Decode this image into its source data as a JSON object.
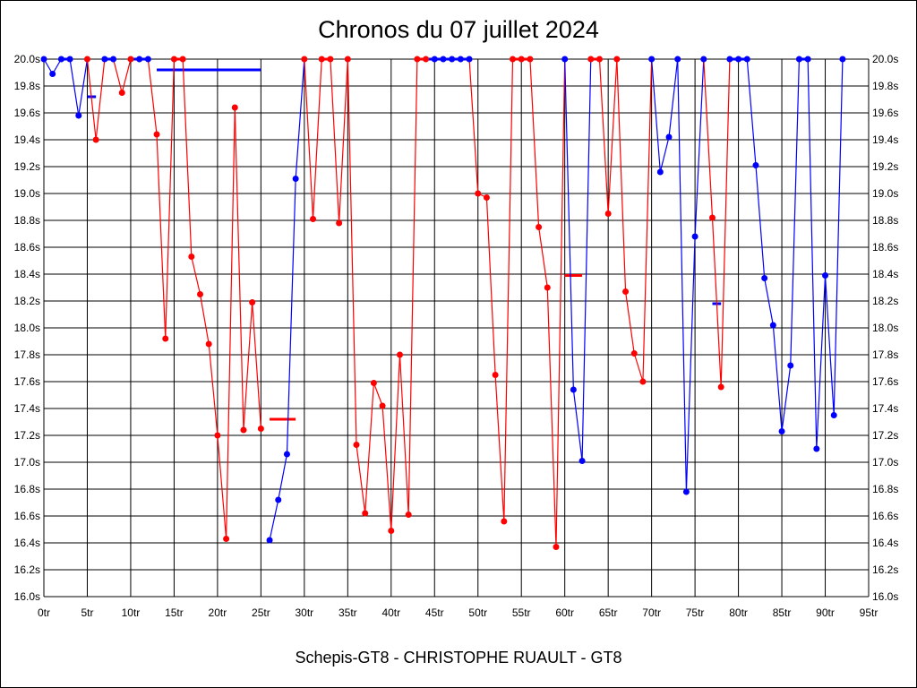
{
  "chart_data": {
    "type": "line",
    "title": "Chronos du 07 juillet 2024",
    "xlabel": "Schepis-GT8 - CHRISTOPHE RUAULT - GT8",
    "ylabel": "",
    "xlim": [
      0,
      95
    ],
    "ylim": [
      16.0,
      20.0
    ],
    "grid": true,
    "x_ticks": [
      "0tr",
      "5tr",
      "10tr",
      "15tr",
      "20tr",
      "25tr",
      "30tr",
      "35tr",
      "40tr",
      "45tr",
      "50tr",
      "55tr",
      "60tr",
      "65tr",
      "70tr",
      "75tr",
      "80tr",
      "85tr",
      "90tr",
      "95tr"
    ],
    "y_ticks": [
      "16.0s",
      "16.2s",
      "16.4s",
      "16.6s",
      "16.8s",
      "17.0s",
      "17.2s",
      "17.4s",
      "17.6s",
      "17.8s",
      "18.0s",
      "18.2s",
      "18.4s",
      "18.6s",
      "18.8s",
      "19.0s",
      "19.2s",
      "19.4s",
      "19.6s",
      "19.8s",
      "20.0s"
    ],
    "colors": {
      "blue": "#0000ff",
      "red": "#ff0000"
    },
    "points": [
      [
        0,
        20.0,
        "blue"
      ],
      [
        1,
        19.89,
        "blue"
      ],
      [
        2,
        20.0,
        "blue"
      ],
      [
        3,
        20.0,
        "blue"
      ],
      [
        4,
        19.58,
        "blue"
      ],
      [
        5,
        20.0,
        "red"
      ],
      [
        6,
        19.4,
        "red"
      ],
      [
        7,
        20.0,
        "blue"
      ],
      [
        8,
        20.0,
        "blue"
      ],
      [
        9,
        19.75,
        "red"
      ],
      [
        10,
        20.0,
        "red"
      ],
      [
        11,
        20.0,
        "blue"
      ],
      [
        12,
        20.0,
        "blue"
      ],
      [
        13,
        19.44,
        "red"
      ],
      [
        14,
        17.92,
        "red"
      ],
      [
        15,
        20.0,
        "red"
      ],
      [
        16,
        20.0,
        "red"
      ],
      [
        17,
        18.53,
        "red"
      ],
      [
        18,
        18.25,
        "red"
      ],
      [
        19,
        17.88,
        "red"
      ],
      [
        20,
        17.2,
        "red"
      ],
      [
        21,
        16.43,
        "red"
      ],
      [
        22,
        19.64,
        "red"
      ],
      [
        23,
        17.24,
        "red"
      ],
      [
        24,
        18.19,
        "red"
      ],
      [
        25,
        17.25,
        "red"
      ],
      [
        26,
        16.42,
        "blue"
      ],
      [
        27,
        16.72,
        "blue"
      ],
      [
        28,
        17.06,
        "blue"
      ],
      [
        29,
        19.11,
        "blue"
      ],
      [
        30,
        20.0,
        "red"
      ],
      [
        31,
        18.81,
        "red"
      ],
      [
        32,
        20.0,
        "red"
      ],
      [
        33,
        20.0,
        "red"
      ],
      [
        34,
        18.78,
        "red"
      ],
      [
        35,
        20.0,
        "red"
      ],
      [
        36,
        17.13,
        "red"
      ],
      [
        37,
        16.62,
        "red"
      ],
      [
        38,
        17.59,
        "red"
      ],
      [
        39,
        17.42,
        "red"
      ],
      [
        40,
        16.49,
        "red"
      ],
      [
        41,
        17.8,
        "red"
      ],
      [
        42,
        16.61,
        "red"
      ],
      [
        43,
        20.0,
        "red"
      ],
      [
        44,
        20.0,
        "red"
      ],
      [
        45,
        20.0,
        "blue"
      ],
      [
        46,
        20.0,
        "blue"
      ],
      [
        47,
        20.0,
        "blue"
      ],
      [
        48,
        20.0,
        "blue"
      ],
      [
        49,
        20.0,
        "blue"
      ],
      [
        50,
        19.0,
        "red"
      ],
      [
        51,
        18.97,
        "red"
      ],
      [
        52,
        17.65,
        "red"
      ],
      [
        53,
        16.56,
        "red"
      ],
      [
        54,
        20.0,
        "red"
      ],
      [
        55,
        20.0,
        "red"
      ],
      [
        56,
        20.0,
        "red"
      ],
      [
        57,
        18.75,
        "red"
      ],
      [
        58,
        18.3,
        "red"
      ],
      [
        59,
        16.37,
        "red"
      ],
      [
        60,
        20.0,
        "blue"
      ],
      [
        61,
        17.54,
        "blue"
      ],
      [
        62,
        17.01,
        "blue"
      ],
      [
        63,
        20.0,
        "red"
      ],
      [
        64,
        20.0,
        "red"
      ],
      [
        65,
        18.85,
        "red"
      ],
      [
        66,
        20.0,
        "red"
      ],
      [
        67,
        18.27,
        "red"
      ],
      [
        68,
        17.81,
        "red"
      ],
      [
        69,
        17.6,
        "red"
      ],
      [
        70,
        20.0,
        "blue"
      ],
      [
        71,
        19.16,
        "blue"
      ],
      [
        72,
        19.42,
        "blue"
      ],
      [
        73,
        20.0,
        "blue"
      ],
      [
        74,
        16.78,
        "blue"
      ],
      [
        75,
        18.68,
        "blue"
      ],
      [
        76,
        20.0,
        "blue"
      ],
      [
        77,
        18.82,
        "red"
      ],
      [
        78,
        17.56,
        "red"
      ],
      [
        79,
        20.0,
        "blue"
      ],
      [
        80,
        20.0,
        "blue"
      ],
      [
        81,
        20.0,
        "blue"
      ],
      [
        82,
        19.21,
        "blue"
      ],
      [
        83,
        18.37,
        "blue"
      ],
      [
        84,
        18.02,
        "blue"
      ],
      [
        85,
        17.23,
        "blue"
      ],
      [
        86,
        17.72,
        "blue"
      ],
      [
        87,
        20.0,
        "blue"
      ],
      [
        88,
        20.0,
        "blue"
      ],
      [
        89,
        17.1,
        "blue"
      ],
      [
        90,
        18.39,
        "blue"
      ],
      [
        91,
        17.35,
        "blue"
      ],
      [
        92,
        20.0,
        "blue"
      ]
    ],
    "average_marks": [
      {
        "x": [
          5,
          6
        ],
        "y": 19.72,
        "color": "blue"
      },
      {
        "x": [
          13,
          25
        ],
        "y": 19.92,
        "color": "blue"
      },
      {
        "x": [
          26,
          29
        ],
        "y": 17.32,
        "color": "red"
      },
      {
        "x": [
          60,
          62
        ],
        "y": 18.39,
        "color": "red"
      },
      {
        "x": [
          77,
          78
        ],
        "y": 18.18,
        "color": "blue"
      }
    ]
  }
}
